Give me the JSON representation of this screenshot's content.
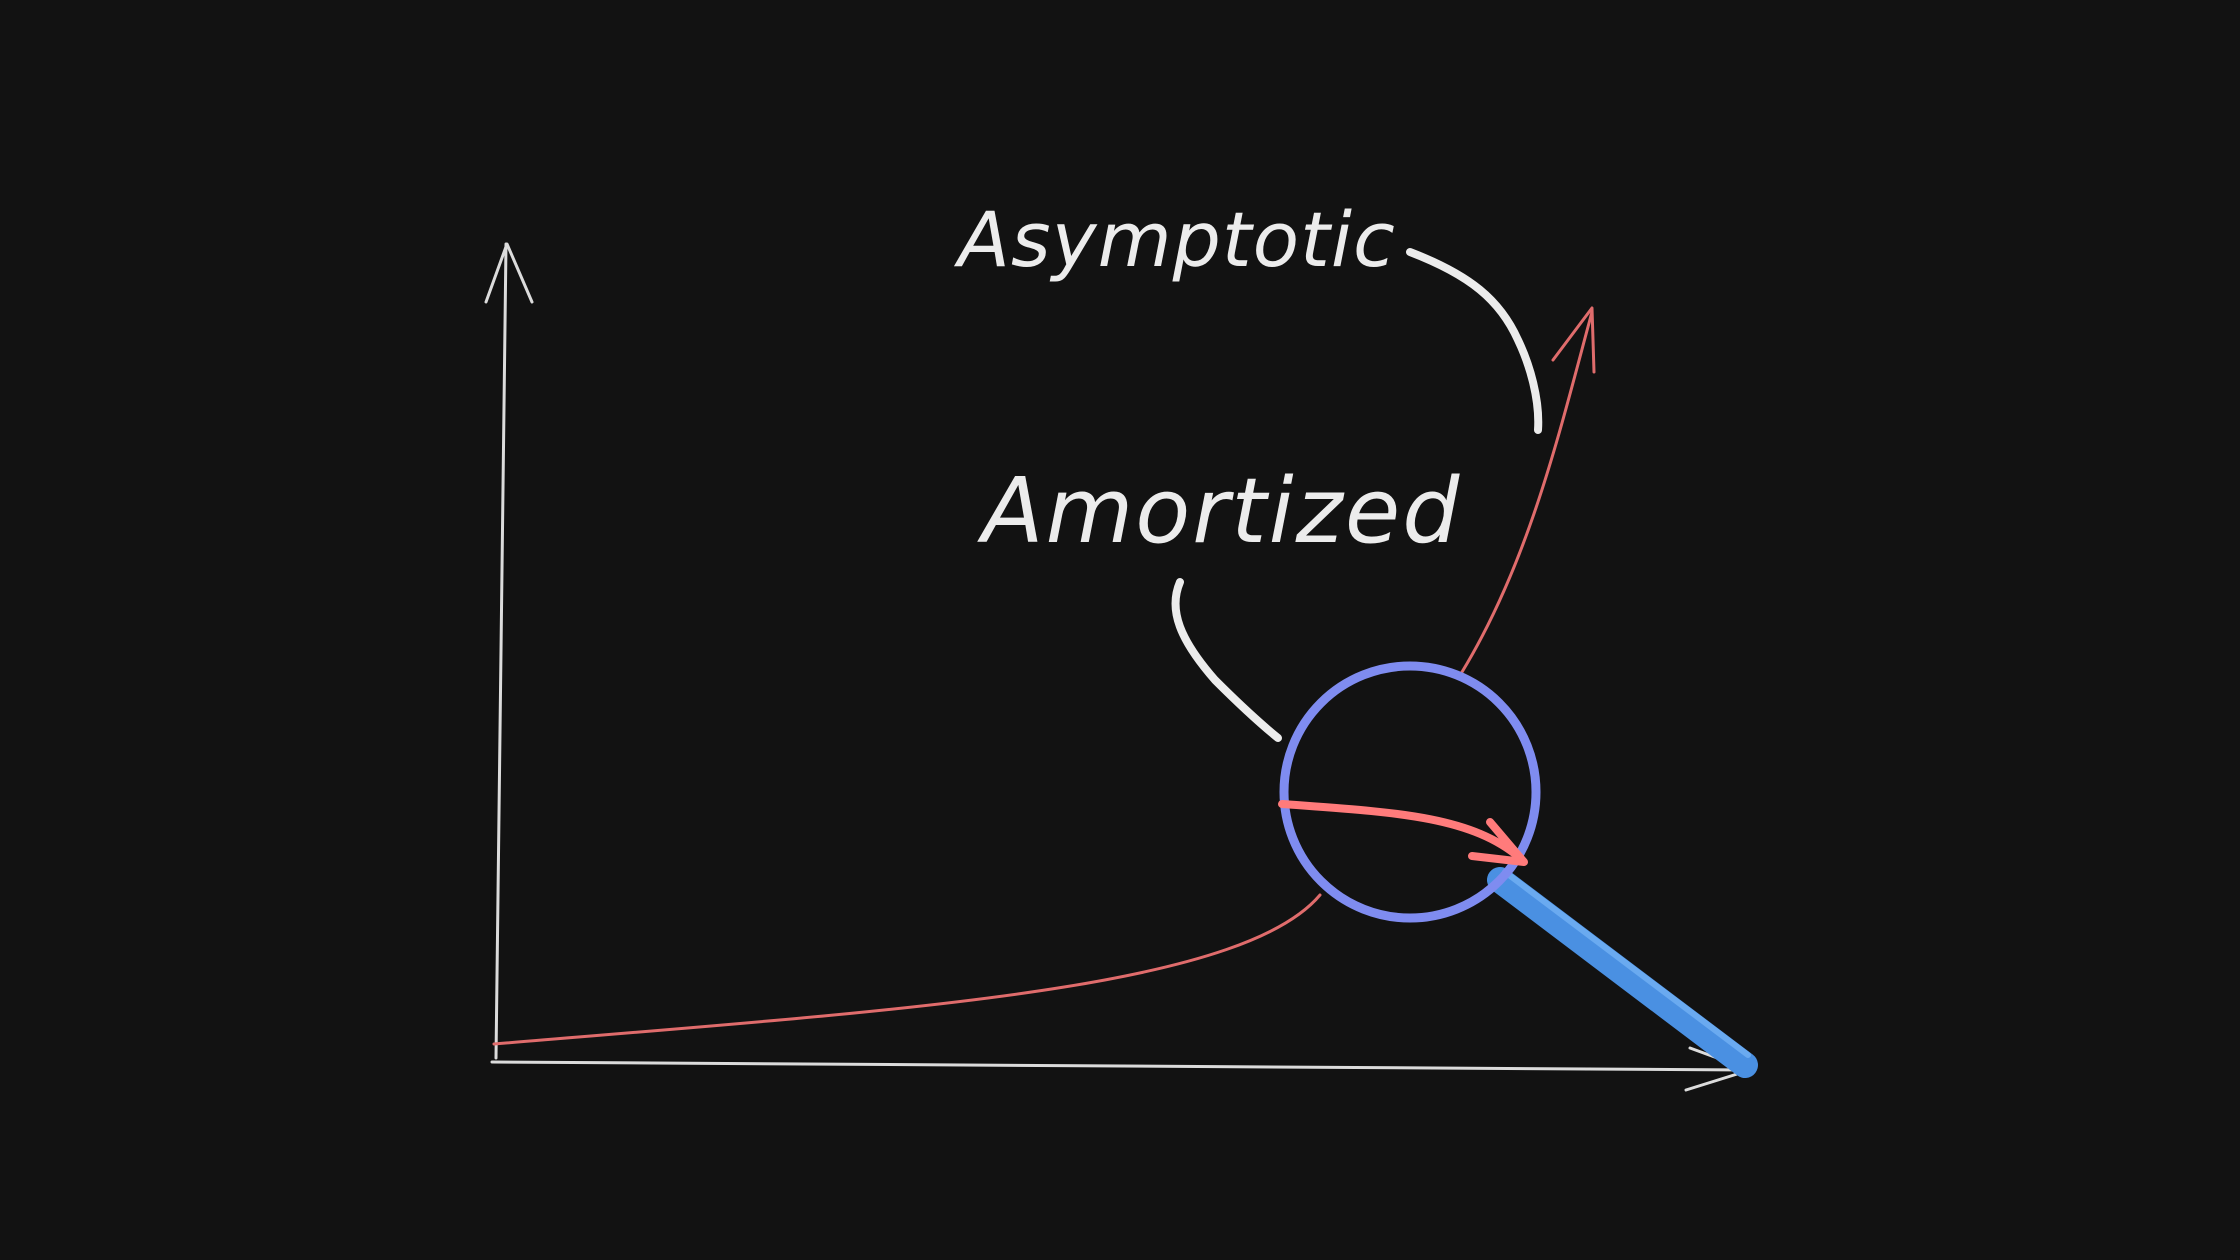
{
  "labels": {
    "asymptotic": "Asymptotic",
    "amortized": "Amortized"
  },
  "colors": {
    "background": "#121212",
    "axis": "#dcdcdc",
    "curve": "#e06c6c",
    "label": "#ececec",
    "lens_ring": "#7f8cf0",
    "lens_handle": "#4a90e2",
    "zoomed_arrow": "#ff7b7b"
  },
  "icons": {
    "lens": "magnifying-glass-icon"
  }
}
